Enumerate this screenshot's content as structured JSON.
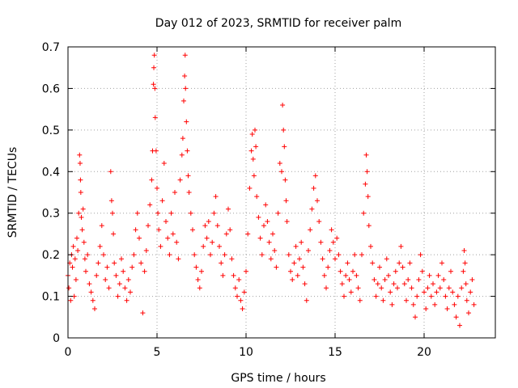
{
  "chart_data": {
    "type": "scatter",
    "title": "Day 012 of 2023, SRMTID for receiver palm",
    "xlabel": "GPS time / hours",
    "ylabel": "SRMTID / TECUs",
    "xlim": [
      0,
      24
    ],
    "ylim": [
      0,
      0.7
    ],
    "xticks": [
      0,
      5,
      10,
      15,
      20
    ],
    "yticks": [
      0,
      0.1,
      0.2,
      0.3,
      0.4,
      0.5,
      0.6,
      0.7
    ],
    "xtick_labels": [
      "0",
      "5",
      "10",
      "15",
      "20"
    ],
    "ytick_labels": [
      "0",
      "0.1",
      "0.2",
      "0.3",
      "0.4",
      "0.5",
      "0.6",
      "0.7"
    ],
    "grid": true,
    "marker": "+",
    "color": "#ff0000",
    "series": [
      {
        "name": "SRMTID",
        "points": [
          [
            0.0,
            0.15
          ],
          [
            0.05,
            0.12
          ],
          [
            0.1,
            0.18
          ],
          [
            0.15,
            0.09
          ],
          [
            0.2,
            0.2
          ],
          [
            0.25,
            0.17
          ],
          [
            0.3,
            0.22
          ],
          [
            0.35,
            0.1
          ],
          [
            0.4,
            0.19
          ],
          [
            0.45,
            0.14
          ],
          [
            0.5,
            0.24
          ],
          [
            0.55,
            0.21
          ],
          [
            0.6,
            0.3
          ],
          [
            0.65,
            0.44
          ],
          [
            0.68,
            0.42
          ],
          [
            0.7,
            0.38
          ],
          [
            0.72,
            0.35
          ],
          [
            0.75,
            0.29
          ],
          [
            0.8,
            0.26
          ],
          [
            0.85,
            0.31
          ],
          [
            0.9,
            0.23
          ],
          [
            0.95,
            0.19
          ],
          [
            1.0,
            0.16
          ],
          [
            1.1,
            0.2
          ],
          [
            1.2,
            0.13
          ],
          [
            1.3,
            0.11
          ],
          [
            1.4,
            0.09
          ],
          [
            1.5,
            0.07
          ],
          [
            1.6,
            0.15
          ],
          [
            1.7,
            0.18
          ],
          [
            1.8,
            0.22
          ],
          [
            1.9,
            0.27
          ],
          [
            2.0,
            0.2
          ],
          [
            2.1,
            0.14
          ],
          [
            2.2,
            0.17
          ],
          [
            2.3,
            0.12
          ],
          [
            2.4,
            0.4
          ],
          [
            2.45,
            0.33
          ],
          [
            2.5,
            0.3
          ],
          [
            2.55,
            0.25
          ],
          [
            2.6,
            0.18
          ],
          [
            2.7,
            0.15
          ],
          [
            2.8,
            0.1
          ],
          [
            2.9,
            0.13
          ],
          [
            3.0,
            0.19
          ],
          [
            3.1,
            0.16
          ],
          [
            3.2,
            0.12
          ],
          [
            3.3,
            0.09
          ],
          [
            3.4,
            0.14
          ],
          [
            3.5,
            0.11
          ],
          [
            3.6,
            0.17
          ],
          [
            3.7,
            0.2
          ],
          [
            3.8,
            0.26
          ],
          [
            3.9,
            0.3
          ],
          [
            4.0,
            0.24
          ],
          [
            4.1,
            0.18
          ],
          [
            4.2,
            0.06
          ],
          [
            4.3,
            0.16
          ],
          [
            4.4,
            0.21
          ],
          [
            4.5,
            0.27
          ],
          [
            4.6,
            0.32
          ],
          [
            4.7,
            0.38
          ],
          [
            4.75,
            0.45
          ],
          [
            4.8,
            0.61
          ],
          [
            4.82,
            0.65
          ],
          [
            4.85,
            0.68
          ],
          [
            4.88,
            0.6
          ],
          [
            4.9,
            0.53
          ],
          [
            4.95,
            0.45
          ],
          [
            5.0,
            0.36
          ],
          [
            5.05,
            0.3
          ],
          [
            5.1,
            0.26
          ],
          [
            5.2,
            0.22
          ],
          [
            5.3,
            0.33
          ],
          [
            5.4,
            0.42
          ],
          [
            5.5,
            0.28
          ],
          [
            5.6,
            0.24
          ],
          [
            5.7,
            0.2
          ],
          [
            5.8,
            0.3
          ],
          [
            5.9,
            0.25
          ],
          [
            6.0,
            0.35
          ],
          [
            6.1,
            0.23
          ],
          [
            6.2,
            0.19
          ],
          [
            6.3,
            0.38
          ],
          [
            6.4,
            0.44
          ],
          [
            6.45,
            0.48
          ],
          [
            6.5,
            0.57
          ],
          [
            6.55,
            0.63
          ],
          [
            6.58,
            0.68
          ],
          [
            6.6,
            0.6
          ],
          [
            6.65,
            0.52
          ],
          [
            6.7,
            0.45
          ],
          [
            6.75,
            0.39
          ],
          [
            6.8,
            0.35
          ],
          [
            6.9,
            0.3
          ],
          [
            7.0,
            0.26
          ],
          [
            7.1,
            0.2
          ],
          [
            7.2,
            0.17
          ],
          [
            7.3,
            0.14
          ],
          [
            7.4,
            0.12
          ],
          [
            7.5,
            0.16
          ],
          [
            7.6,
            0.22
          ],
          [
            7.7,
            0.27
          ],
          [
            7.8,
            0.24
          ],
          [
            7.9,
            0.28
          ],
          [
            8.0,
            0.2
          ],
          [
            8.1,
            0.23
          ],
          [
            8.2,
            0.3
          ],
          [
            8.3,
            0.34
          ],
          [
            8.4,
            0.27
          ],
          [
            8.5,
            0.22
          ],
          [
            8.6,
            0.18
          ],
          [
            8.7,
            0.15
          ],
          [
            8.8,
            0.2
          ],
          [
            8.9,
            0.25
          ],
          [
            9.0,
            0.31
          ],
          [
            9.1,
            0.26
          ],
          [
            9.2,
            0.19
          ],
          [
            9.3,
            0.15
          ],
          [
            9.4,
            0.12
          ],
          [
            9.5,
            0.1
          ],
          [
            9.6,
            0.14
          ],
          [
            9.7,
            0.09
          ],
          [
            9.8,
            0.07
          ],
          [
            9.9,
            0.11
          ],
          [
            10.0,
            0.16
          ],
          [
            10.1,
            0.25
          ],
          [
            10.2,
            0.36
          ],
          [
            10.3,
            0.45
          ],
          [
            10.35,
            0.49
          ],
          [
            10.4,
            0.43
          ],
          [
            10.45,
            0.39
          ],
          [
            10.5,
            0.5
          ],
          [
            10.55,
            0.46
          ],
          [
            10.6,
            0.34
          ],
          [
            10.7,
            0.29
          ],
          [
            10.8,
            0.24
          ],
          [
            10.9,
            0.2
          ],
          [
            11.0,
            0.27
          ],
          [
            11.1,
            0.32
          ],
          [
            11.2,
            0.28
          ],
          [
            11.3,
            0.23
          ],
          [
            11.4,
            0.19
          ],
          [
            11.5,
            0.25
          ],
          [
            11.6,
            0.21
          ],
          [
            11.7,
            0.17
          ],
          [
            11.8,
            0.3
          ],
          [
            11.9,
            0.42
          ],
          [
            12.0,
            0.4
          ],
          [
            12.05,
            0.56
          ],
          [
            12.1,
            0.5
          ],
          [
            12.15,
            0.46
          ],
          [
            12.2,
            0.38
          ],
          [
            12.25,
            0.33
          ],
          [
            12.3,
            0.28
          ],
          [
            12.4,
            0.2
          ],
          [
            12.5,
            0.16
          ],
          [
            12.6,
            0.14
          ],
          [
            12.7,
            0.18
          ],
          [
            12.8,
            0.22
          ],
          [
            12.9,
            0.15
          ],
          [
            13.0,
            0.19
          ],
          [
            13.1,
            0.23
          ],
          [
            13.2,
            0.17
          ],
          [
            13.3,
            0.13
          ],
          [
            13.4,
            0.09
          ],
          [
            13.5,
            0.21
          ],
          [
            13.6,
            0.26
          ],
          [
            13.7,
            0.31
          ],
          [
            13.8,
            0.36
          ],
          [
            13.9,
            0.39
          ],
          [
            14.0,
            0.33
          ],
          [
            14.1,
            0.28
          ],
          [
            14.2,
            0.23
          ],
          [
            14.3,
            0.19
          ],
          [
            14.4,
            0.15
          ],
          [
            14.5,
            0.12
          ],
          [
            14.6,
            0.17
          ],
          [
            14.7,
            0.21
          ],
          [
            14.8,
            0.26
          ],
          [
            14.9,
            0.23
          ],
          [
            15.0,
            0.19
          ],
          [
            15.1,
            0.24
          ],
          [
            15.2,
            0.2
          ],
          [
            15.3,
            0.16
          ],
          [
            15.4,
            0.13
          ],
          [
            15.5,
            0.1
          ],
          [
            15.6,
            0.15
          ],
          [
            15.7,
            0.18
          ],
          [
            15.8,
            0.14
          ],
          [
            15.9,
            0.11
          ],
          [
            16.0,
            0.16
          ],
          [
            16.1,
            0.2
          ],
          [
            16.2,
            0.15
          ],
          [
            16.3,
            0.12
          ],
          [
            16.4,
            0.09
          ],
          [
            16.5,
            0.2
          ],
          [
            16.6,
            0.3
          ],
          [
            16.7,
            0.37
          ],
          [
            16.75,
            0.44
          ],
          [
            16.8,
            0.4
          ],
          [
            16.85,
            0.34
          ],
          [
            16.9,
            0.27
          ],
          [
            17.0,
            0.22
          ],
          [
            17.1,
            0.18
          ],
          [
            17.2,
            0.14
          ],
          [
            17.3,
            0.1
          ],
          [
            17.4,
            0.13
          ],
          [
            17.5,
            0.17
          ],
          [
            17.6,
            0.12
          ],
          [
            17.7,
            0.09
          ],
          [
            17.8,
            0.14
          ],
          [
            17.9,
            0.19
          ],
          [
            18.0,
            0.15
          ],
          [
            18.1,
            0.11
          ],
          [
            18.2,
            0.08
          ],
          [
            18.3,
            0.13
          ],
          [
            18.4,
            0.16
          ],
          [
            18.5,
            0.12
          ],
          [
            18.6,
            0.18
          ],
          [
            18.7,
            0.22
          ],
          [
            18.8,
            0.17
          ],
          [
            18.9,
            0.13
          ],
          [
            19.0,
            0.09
          ],
          [
            19.1,
            0.14
          ],
          [
            19.2,
            0.18
          ],
          [
            19.3,
            0.12
          ],
          [
            19.4,
            0.08
          ],
          [
            19.5,
            0.05
          ],
          [
            19.6,
            0.1
          ],
          [
            19.7,
            0.14
          ],
          [
            19.8,
            0.2
          ],
          [
            19.9,
            0.16
          ],
          [
            20.0,
            0.11
          ],
          [
            20.1,
            0.07
          ],
          [
            20.2,
            0.12
          ],
          [
            20.3,
            0.15
          ],
          [
            20.4,
            0.1
          ],
          [
            20.5,
            0.13
          ],
          [
            20.6,
            0.08
          ],
          [
            20.7,
            0.11
          ],
          [
            20.8,
            0.15
          ],
          [
            20.9,
            0.12
          ],
          [
            21.0,
            0.18
          ],
          [
            21.1,
            0.14
          ],
          [
            21.2,
            0.1
          ],
          [
            21.3,
            0.07
          ],
          [
            21.4,
            0.12
          ],
          [
            21.5,
            0.16
          ],
          [
            21.6,
            0.11
          ],
          [
            21.7,
            0.08
          ],
          [
            21.8,
            0.05
          ],
          [
            21.9,
            0.1
          ],
          [
            22.0,
            0.03
          ],
          [
            22.1,
            0.12
          ],
          [
            22.2,
            0.16
          ],
          [
            22.25,
            0.21
          ],
          [
            22.3,
            0.18
          ],
          [
            22.35,
            0.13
          ],
          [
            22.4,
            0.09
          ],
          [
            22.5,
            0.06
          ],
          [
            22.6,
            0.11
          ],
          [
            22.7,
            0.14
          ],
          [
            22.8,
            0.08
          ]
        ]
      }
    ]
  }
}
